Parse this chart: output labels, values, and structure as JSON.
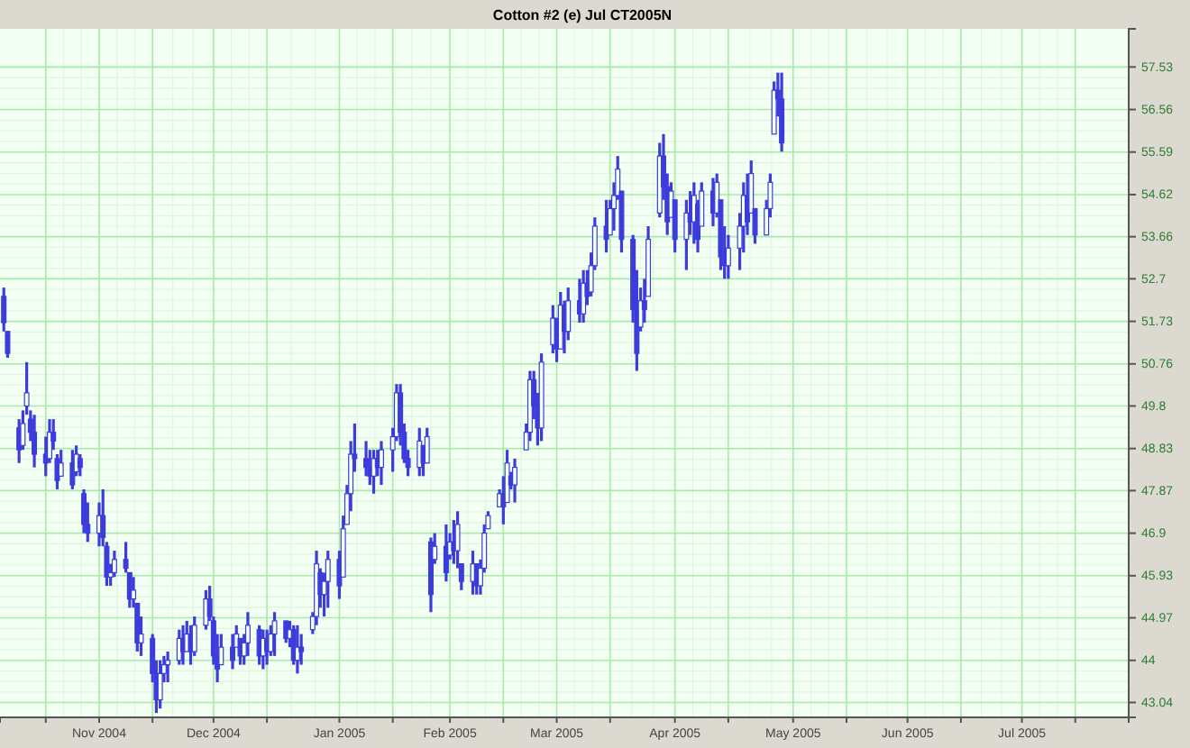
{
  "chart_data": {
    "type": "candlestick",
    "title": "Cotton #2 (e) Jul CT2005N",
    "color": "#3c3cdc",
    "grid": true,
    "xlim": [
      "2004-10-06",
      "2005-07-29"
    ],
    "xticks": [
      {
        "value": "2004-10-18",
        "label": null
      },
      {
        "value": "2004-11-01",
        "label": "Nov 2004"
      },
      {
        "value": "2004-11-15",
        "label": null
      },
      {
        "value": "2004-12-01",
        "label": "Dec 2004"
      },
      {
        "value": "2004-12-15",
        "label": null
      },
      {
        "value": "2005-01-03",
        "label": "Jan 2005"
      },
      {
        "value": "2005-01-17",
        "label": null
      },
      {
        "value": "2005-02-01",
        "label": "Feb 2005"
      },
      {
        "value": "2005-02-15",
        "label": null
      },
      {
        "value": "2005-03-01",
        "label": "Mar 2005"
      },
      {
        "value": "2005-03-15",
        "label": null
      },
      {
        "value": "2005-04-01",
        "label": "Apr 2005"
      },
      {
        "value": "2005-04-15",
        "label": null
      },
      {
        "value": "2005-05-02",
        "label": "May 2005"
      },
      {
        "value": "2005-05-16",
        "label": null
      },
      {
        "value": "2005-06-01",
        "label": "Jun 2005"
      },
      {
        "value": "2005-06-15",
        "label": null
      },
      {
        "value": "2005-07-01",
        "label": "Jul 2005"
      },
      {
        "value": "2005-07-15",
        "label": null
      }
    ],
    "ylim": [
      42.7,
      58.4
    ],
    "yticks": [
      43.04,
      44.0,
      44.97,
      45.93,
      46.9,
      47.87,
      48.83,
      49.8,
      50.76,
      51.73,
      52.7,
      53.66,
      54.62,
      55.59,
      56.56,
      57.53
    ],
    "x": [
      "2004-10-07",
      "2004-10-08",
      "2004-10-11",
      "2004-10-12",
      "2004-10-13",
      "2004-10-14",
      "2004-10-15",
      "2004-10-18",
      "2004-10-19",
      "2004-10-20",
      "2004-10-21",
      "2004-10-22",
      "2004-10-25",
      "2004-10-26",
      "2004-10-27",
      "2004-10-28",
      "2004-10-29",
      "2004-11-01",
      "2004-11-02",
      "2004-11-03",
      "2004-11-04",
      "2004-11-05",
      "2004-11-08",
      "2004-11-09",
      "2004-11-10",
      "2004-11-11",
      "2004-11-12",
      "2004-11-15",
      "2004-11-16",
      "2004-11-17",
      "2004-11-18",
      "2004-11-19",
      "2004-11-22",
      "2004-11-23",
      "2004-11-24",
      "2004-11-25",
      "2004-11-26",
      "2004-11-29",
      "2004-11-30",
      "2004-12-01",
      "2004-12-02",
      "2004-12-03",
      "2004-12-06",
      "2004-12-07",
      "2004-12-08",
      "2004-12-09",
      "2004-12-10",
      "2004-12-13",
      "2004-12-14",
      "2004-12-15",
      "2004-12-16",
      "2004-12-17",
      "2004-12-20",
      "2004-12-21",
      "2004-12-22",
      "2004-12-23",
      "2004-12-24",
      "2004-12-27",
      "2004-12-28",
      "2004-12-29",
      "2004-12-30",
      "2004-12-31",
      "2005-01-03",
      "2005-01-04",
      "2005-01-05",
      "2005-01-06",
      "2005-01-07",
      "2005-01-10",
      "2005-01-11",
      "2005-01-12",
      "2005-01-13",
      "2005-01-14",
      "2005-01-17",
      "2005-01-18",
      "2005-01-19",
      "2005-01-20",
      "2005-01-21",
      "2005-01-24",
      "2005-01-25",
      "2005-01-26",
      "2005-01-27",
      "2005-01-28",
      "2005-01-31",
      "2005-02-01",
      "2005-02-02",
      "2005-02-03",
      "2005-02-04",
      "2005-02-07",
      "2005-02-08",
      "2005-02-09",
      "2005-02-10",
      "2005-02-11",
      "2005-02-14",
      "2005-02-15",
      "2005-02-16",
      "2005-02-17",
      "2005-02-18",
      "2005-02-21",
      "2005-02-22",
      "2005-02-23",
      "2005-02-24",
      "2005-02-25",
      "2005-02-28",
      "2005-03-01",
      "2005-03-02",
      "2005-03-03",
      "2005-03-04",
      "2005-03-07",
      "2005-03-08",
      "2005-03-09",
      "2005-03-10",
      "2005-03-11",
      "2005-03-14",
      "2005-03-15",
      "2005-03-16",
      "2005-03-17",
      "2005-03-18",
      "2005-03-21",
      "2005-03-22",
      "2005-03-23",
      "2005-03-24",
      "2005-03-25",
      "2005-03-28",
      "2005-03-29",
      "2005-03-30",
      "2005-03-31",
      "2005-04-01",
      "2005-04-04",
      "2005-04-05",
      "2005-04-06",
      "2005-04-07",
      "2005-04-08",
      "2005-04-11",
      "2005-04-12",
      "2005-04-13",
      "2005-04-14",
      "2005-04-15",
      "2005-04-18",
      "2005-04-19",
      "2005-04-20",
      "2005-04-21",
      "2005-04-22",
      "2005-04-25",
      "2005-04-26",
      "2005-04-27",
      "2005-04-28",
      "2005-04-29"
    ],
    "ohlc": [
      [
        52.3,
        52.5,
        51.5,
        51.7
      ],
      [
        51.5,
        51.5,
        50.9,
        51.0
      ],
      [
        49.3,
        49.5,
        48.5,
        48.8
      ],
      [
        48.9,
        49.7,
        48.8,
        49.4
      ],
      [
        49.8,
        50.8,
        49.6,
        50.1
      ],
      [
        49.5,
        49.7,
        49.0,
        49.2
      ],
      [
        49.2,
        49.6,
        48.4,
        48.7
      ],
      [
        48.7,
        49.1,
        48.2,
        48.5
      ],
      [
        48.6,
        49.5,
        48.5,
        49.2
      ],
      [
        49.2,
        49.5,
        48.8,
        49.0
      ],
      [
        48.6,
        48.7,
        47.9,
        48.1
      ],
      [
        48.2,
        48.8,
        48.2,
        48.5
      ],
      [
        48.5,
        48.8,
        47.9,
        48.0
      ],
      [
        48.3,
        48.9,
        48.2,
        48.7
      ],
      [
        48.6,
        48.7,
        48.2,
        48.4
      ],
      [
        47.8,
        47.9,
        46.9,
        47.1
      ],
      [
        47.1,
        47.6,
        46.7,
        46.9
      ],
      [
        46.9,
        47.6,
        46.6,
        47.3
      ],
      [
        47.3,
        47.9,
        46.6,
        46.8
      ],
      [
        46.6,
        46.7,
        45.7,
        45.9
      ],
      [
        45.9,
        46.2,
        45.7,
        46.0
      ],
      [
        46.0,
        46.5,
        45.9,
        46.3
      ],
      [
        46.3,
        46.7,
        46.0,
        46.1
      ],
      [
        46.0,
        46.0,
        45.2,
        45.4
      ],
      [
        45.4,
        45.9,
        45.2,
        45.6
      ],
      [
        45.3,
        45.3,
        44.2,
        44.4
      ],
      [
        44.4,
        45.0,
        44.1,
        44.6
      ],
      [
        44.5,
        44.6,
        43.5,
        43.7
      ],
      [
        43.7,
        44.0,
        42.8,
        43.1
      ],
      [
        43.1,
        44.0,
        42.9,
        43.7
      ],
      [
        43.7,
        44.1,
        43.5,
        43.9
      ],
      [
        43.9,
        44.2,
        43.5,
        44.0
      ],
      [
        44.0,
        44.7,
        43.9,
        44.5
      ],
      [
        44.5,
        44.8,
        43.9,
        44.2
      ],
      [
        44.2,
        44.9,
        44.2,
        44.6
      ],
      [
        44.6,
        44.8,
        43.9,
        44.2
      ],
      [
        44.2,
        45.0,
        44.1,
        44.8
      ],
      [
        44.8,
        45.6,
        44.7,
        45.4
      ],
      [
        45.4,
        45.7,
        44.9,
        45.0
      ],
      [
        44.9,
        45.0,
        43.9,
        44.1
      ],
      [
        44.1,
        44.6,
        43.5,
        43.8
      ],
      [
        43.9,
        44.6,
        43.9,
        44.3
      ],
      [
        44.3,
        44.6,
        43.8,
        44.0
      ],
      [
        44.3,
        44.8,
        44.3,
        44.6
      ],
      [
        44.5,
        44.5,
        43.9,
        44.1
      ],
      [
        44.1,
        44.6,
        43.9,
        44.4
      ],
      [
        44.4,
        45.1,
        44.1,
        44.8
      ],
      [
        44.7,
        44.8,
        43.9,
        44.1
      ],
      [
        44.1,
        44.7,
        43.8,
        44.5
      ],
      [
        44.5,
        44.7,
        43.9,
        44.2
      ],
      [
        44.2,
        44.8,
        44.1,
        44.6
      ],
      [
        44.6,
        45.1,
        44.1,
        44.9
      ],
      [
        44.9,
        44.9,
        44.4,
        44.5
      ],
      [
        44.5,
        44.9,
        44.3,
        44.7
      ],
      [
        44.7,
        44.8,
        43.9,
        44.0
      ],
      [
        44.0,
        44.8,
        43.7,
        44.3
      ],
      [
        44.3,
        44.6,
        43.9,
        44.2
      ],
      [
        44.7,
        45.1,
        44.6,
        45.0
      ],
      [
        45.0,
        46.5,
        44.8,
        46.2
      ],
      [
        46.0,
        46.1,
        45.2,
        45.5
      ],
      [
        45.5,
        46.0,
        45.0,
        45.8
      ],
      [
        45.8,
        46.5,
        45.2,
        46.3
      ],
      [
        46.3,
        46.5,
        45.4,
        45.7
      ],
      [
        45.9,
        47.3,
        45.9,
        47.0
      ],
      [
        47.1,
        48.0,
        47.1,
        47.8
      ],
      [
        47.8,
        49.0,
        47.4,
        48.7
      ],
      [
        48.7,
        49.4,
        48.3,
        48.6
      ],
      [
        48.6,
        49.0,
        48.2,
        48.4
      ],
      [
        48.4,
        48.8,
        48.0,
        48.2
      ],
      [
        48.2,
        48.8,
        47.8,
        48.6
      ],
      [
        48.6,
        48.8,
        48.2,
        48.4
      ],
      [
        48.4,
        49.0,
        48.0,
        48.8
      ],
      [
        48.8,
        49.3,
        48.3,
        49.1
      ],
      [
        49.1,
        50.3,
        49.0,
        50.1
      ],
      [
        50.1,
        50.3,
        48.9,
        49.2
      ],
      [
        49.2,
        49.4,
        48.5,
        48.6
      ],
      [
        48.6,
        48.8,
        48.2,
        48.4
      ],
      [
        48.4,
        49.3,
        48.2,
        49.0
      ],
      [
        48.9,
        48.9,
        48.2,
        48.5
      ],
      [
        48.5,
        49.3,
        48.5,
        49.1
      ],
      [
        46.7,
        46.8,
        45.1,
        45.5
      ],
      [
        46.3,
        46.9,
        46.2,
        46.6
      ],
      [
        46.6,
        47.1,
        45.8,
        46.0
      ],
      [
        46.4,
        46.9,
        46.3,
        46.7
      ],
      [
        46.7,
        47.2,
        46.2,
        46.5
      ],
      [
        46.5,
        47.4,
        46.1,
        47.1
      ],
      [
        46.2,
        46.2,
        45.6,
        45.8
      ],
      [
        45.8,
        46.5,
        45.5,
        46.2
      ],
      [
        46.2,
        46.2,
        45.5,
        45.7
      ],
      [
        45.7,
        46.3,
        45.5,
        46.1
      ],
      [
        46.1,
        47.1,
        46.0,
        46.9
      ],
      [
        47.0,
        47.4,
        47.0,
        47.3
      ],
      [
        47.5,
        47.9,
        47.5,
        47.8
      ],
      [
        47.8,
        48.2,
        47.1,
        47.5
      ],
      [
        47.6,
        48.8,
        47.6,
        48.5
      ],
      [
        48.2,
        48.3,
        47.9,
        48.0
      ],
      [
        48.0,
        48.6,
        47.6,
        48.4
      ],
      [
        48.8,
        49.4,
        48.8,
        49.2
      ],
      [
        49.2,
        50.6,
        49.0,
        50.4
      ],
      [
        50.4,
        50.6,
        49.5,
        49.8
      ],
      [
        49.8,
        50.1,
        48.9,
        49.3
      ],
      [
        49.3,
        51.0,
        49.0,
        50.8
      ],
      [
        51.2,
        52.1,
        51.0,
        51.8
      ],
      [
        51.8,
        51.8,
        50.8,
        51.1
      ],
      [
        51.1,
        52.4,
        51.1,
        52.1
      ],
      [
        52.1,
        52.2,
        51.0,
        51.5
      ],
      [
        51.5,
        52.5,
        51.3,
        52.2
      ],
      [
        52.2,
        52.7,
        51.7,
        51.9
      ],
      [
        51.9,
        52.9,
        51.7,
        52.6
      ],
      [
        52.6,
        52.9,
        52.1,
        52.3
      ],
      [
        52.4,
        53.3,
        52.3,
        53.0
      ],
      [
        53.0,
        54.1,
        52.9,
        53.9
      ],
      [
        53.9,
        54.5,
        53.3,
        53.6
      ],
      [
        53.7,
        54.5,
        53.7,
        54.3
      ],
      [
        54.3,
        54.9,
        53.8,
        54.6
      ],
      [
        54.6,
        55.5,
        54.5,
        55.2
      ],
      [
        54.7,
        54.7,
        53.3,
        53.6
      ],
      [
        53.6,
        53.7,
        51.7,
        52.0
      ],
      [
        52.0,
        52.9,
        50.6,
        51.0
      ],
      [
        51.6,
        52.5,
        51.5,
        52.2
      ],
      [
        52.2,
        52.7,
        51.7,
        52.0
      ],
      [
        52.3,
        53.9,
        52.3,
        53.6
      ],
      [
        54.2,
        55.8,
        54.1,
        55.5
      ],
      [
        55.5,
        56.0,
        54.5,
        54.8
      ],
      [
        54.8,
        55.1,
        53.7,
        54.0
      ],
      [
        54.1,
        54.9,
        54.1,
        54.7
      ],
      [
        54.5,
        54.5,
        53.3,
        53.6
      ],
      [
        53.6,
        54.5,
        52.9,
        54.2
      ],
      [
        54.2,
        54.7,
        53.7,
        54.0
      ],
      [
        54.0,
        54.9,
        53.5,
        54.6
      ],
      [
        54.4,
        54.5,
        53.3,
        53.6
      ],
      [
        53.9,
        54.9,
        53.9,
        54.7
      ],
      [
        54.7,
        55.0,
        53.9,
        54.2
      ],
      [
        54.2,
        55.1,
        54.1,
        54.9
      ],
      [
        54.5,
        54.5,
        52.9,
        53.2
      ],
      [
        53.2,
        53.9,
        52.7,
        53.0
      ],
      [
        53.0,
        53.7,
        52.7,
        53.4
      ],
      [
        53.4,
        54.2,
        52.9,
        53.9
      ],
      [
        53.9,
        54.9,
        53.3,
        54.6
      ],
      [
        54.6,
        55.1,
        53.7,
        54.0
      ],
      [
        54.2,
        55.4,
        54.2,
        55.1
      ],
      [
        54.3,
        54.3,
        53.5,
        53.7
      ],
      [
        53.7,
        54.5,
        53.7,
        54.3
      ],
      [
        54.3,
        55.1,
        54.1,
        54.9
      ],
      [
        56.0,
        57.2,
        56.0,
        57.0
      ],
      [
        57.0,
        57.4,
        56.4,
        56.8
      ],
      [
        56.8,
        57.4,
        55.6,
        55.8
      ]
    ]
  }
}
